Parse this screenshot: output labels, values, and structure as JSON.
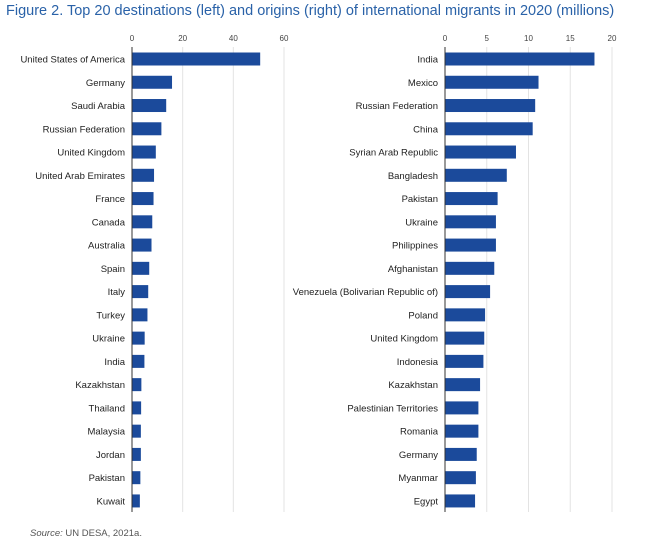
{
  "title": "Figure 2. Top 20 destinations (left) and origins (right) of international migrants in 2020 (millions)",
  "source_label": "Source:",
  "source_text": "UN DESA, 2021a.",
  "bar_color": "#1b4a9b",
  "chart_data": [
    {
      "type": "bar",
      "orientation": "horizontal",
      "title": "",
      "xlim": [
        0,
        60
      ],
      "ticks": [
        0,
        20,
        40,
        60
      ],
      "grid": true,
      "categories": [
        "United States of America",
        "Germany",
        "Saudi Arabia",
        "Russian Federation",
        "United Kingdom",
        "United Arab Emirates",
        "France",
        "Canada",
        "Australia",
        "Spain",
        "Italy",
        "Turkey",
        "Ukraine",
        "India",
        "Kazakhstan",
        "Thailand",
        "Malaysia",
        "Jordan",
        "Pakistan",
        "Kuwait"
      ],
      "values": [
        50.6,
        15.8,
        13.5,
        11.6,
        9.4,
        8.7,
        8.5,
        8.0,
        7.7,
        6.8,
        6.4,
        6.1,
        5.0,
        4.9,
        3.7,
        3.6,
        3.5,
        3.5,
        3.3,
        3.1
      ]
    },
    {
      "type": "bar",
      "orientation": "horizontal",
      "title": "",
      "xlim": [
        0,
        20
      ],
      "ticks": [
        0,
        5,
        10,
        15,
        20
      ],
      "grid": true,
      "categories": [
        "India",
        "Mexico",
        "Russian Federation",
        "China",
        "Syrian Arab Republic",
        "Bangladesh",
        "Pakistan",
        "Ukraine",
        "Philippines",
        "Afghanistan",
        "Venezuela (Bolivarian Republic of)",
        "Poland",
        "United Kingdom",
        "Indonesia",
        "Kazakhstan",
        "Palestinian Territories",
        "Romania",
        "Germany",
        "Myanmar",
        "Egypt"
      ],
      "values": [
        17.9,
        11.2,
        10.8,
        10.5,
        8.5,
        7.4,
        6.3,
        6.1,
        6.1,
        5.9,
        5.4,
        4.8,
        4.7,
        4.6,
        4.2,
        4.0,
        4.0,
        3.8,
        3.7,
        3.6
      ]
    }
  ]
}
